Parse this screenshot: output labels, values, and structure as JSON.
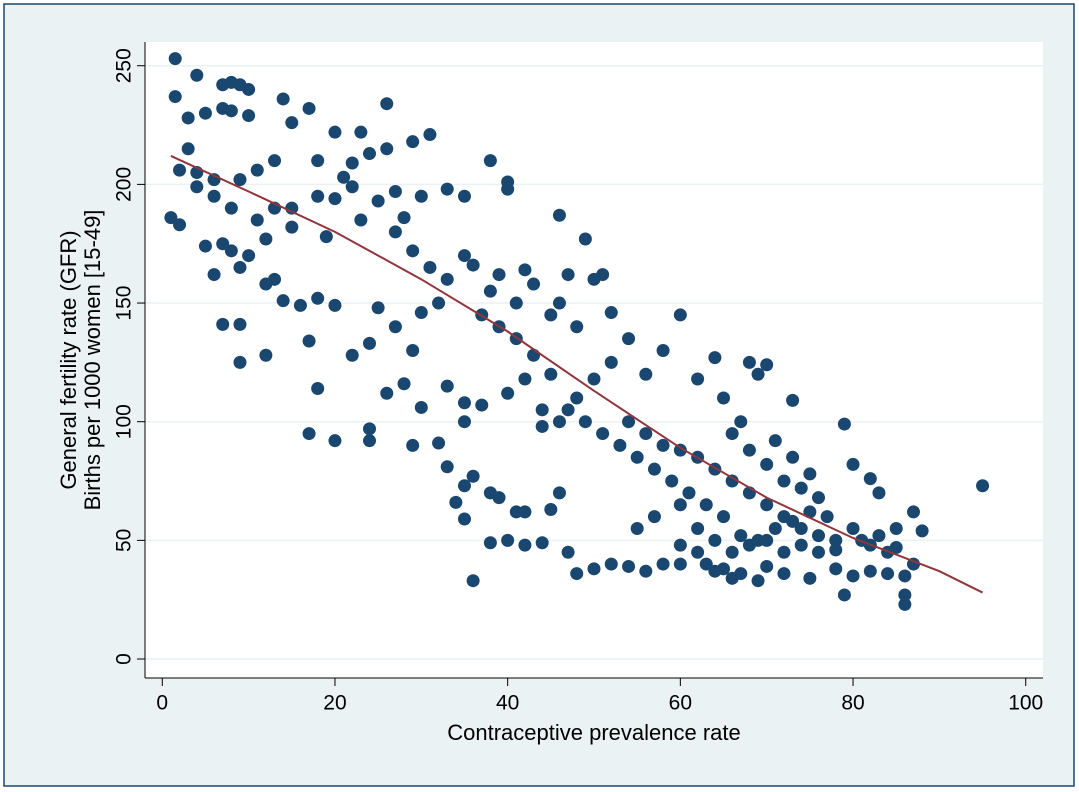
{
  "chart_data": {
    "type": "scatter",
    "x_label": "Contraceptive prevalence rate",
    "y_label": [
      "General fertility rate (GFR)",
      "Births per 1000 women [15-49]"
    ],
    "xlim": [
      -2,
      102
    ],
    "ylim": [
      -8,
      260
    ],
    "xticks": [
      0,
      20,
      40,
      60,
      80,
      100
    ],
    "yticks": [
      0,
      50,
      100,
      150,
      200,
      250
    ],
    "grid": true,
    "series": [
      {
        "type": "scatter",
        "color": "#1a476f",
        "x": [
          1.5,
          1.5,
          4,
          7,
          8,
          9,
          10,
          3,
          5,
          7,
          8,
          10,
          14,
          17,
          26,
          15,
          20,
          23,
          31,
          29,
          26,
          24,
          22,
          18,
          13,
          11,
          2,
          6,
          9,
          4,
          1,
          2,
          5,
          7,
          8,
          9,
          6,
          10,
          12,
          13,
          15,
          18,
          20,
          21,
          22,
          25,
          27,
          28,
          30,
          33,
          35,
          38,
          40,
          40,
          46,
          49,
          12,
          14,
          16,
          18,
          20,
          13,
          7,
          9,
          9,
          12,
          17,
          18,
          22,
          24,
          26,
          28,
          25,
          27,
          29,
          30,
          32,
          33,
          35,
          36,
          38,
          39,
          41,
          42,
          43,
          45,
          46,
          47,
          48,
          50,
          51,
          52,
          17,
          20,
          24,
          24,
          29,
          32,
          35,
          30,
          33,
          35,
          37,
          40,
          42,
          44,
          33,
          35,
          36,
          38,
          39,
          34,
          35,
          41,
          42,
          46,
          45,
          38,
          40,
          42,
          44,
          36,
          47,
          48,
          50,
          52,
          54,
          56,
          58,
          60,
          55,
          57,
          60,
          62,
          63,
          64,
          65,
          66,
          67,
          69,
          70,
          72,
          75,
          78,
          79,
          80,
          82,
          84,
          86,
          86,
          86,
          87,
          88,
          95,
          87,
          85,
          83,
          82,
          80,
          79,
          75,
          73,
          70,
          69,
          68,
          64,
          62,
          60,
          58,
          56,
          54,
          52,
          50,
          48,
          46,
          44,
          54,
          56,
          58,
          60,
          62,
          64,
          66,
          68,
          70,
          72,
          74,
          76,
          78,
          80,
          82,
          84,
          77,
          75,
          73,
          71,
          69,
          67,
          65,
          63,
          61,
          59,
          57,
          55,
          53,
          51,
          49,
          47,
          45,
          43,
          41,
          39,
          37,
          31,
          29,
          27,
          23,
          19,
          15,
          11,
          8,
          6,
          4,
          3,
          60,
          62,
          64,
          66,
          68,
          70,
          72,
          74,
          76,
          78,
          81,
          83,
          85,
          66,
          68,
          70,
          72,
          74,
          76,
          65,
          67,
          71,
          73
        ],
        "values": [
          253,
          237,
          246,
          242,
          243,
          242,
          240,
          228,
          230,
          232,
          231,
          229,
          236,
          232,
          234,
          226,
          222,
          222,
          221,
          218,
          215,
          213,
          209,
          210,
          210,
          206,
          206,
          202,
          202,
          199,
          186,
          183,
          174,
          175,
          172,
          165,
          162,
          170,
          177,
          190,
          190,
          195,
          194,
          203,
          199,
          193,
          197,
          186,
          195,
          198,
          195,
          210,
          201,
          198,
          187,
          177,
          158,
          151,
          149,
          152,
          149,
          160,
          141,
          141,
          125,
          128,
          134,
          114,
          128,
          133,
          112,
          116,
          148,
          140,
          130,
          146,
          150,
          160,
          170,
          166,
          155,
          162,
          150,
          164,
          158,
          145,
          150,
          162,
          140,
          160,
          162,
          146,
          95,
          92,
          97,
          92,
          90,
          91,
          100,
          106,
          115,
          108,
          107,
          112,
          118,
          105,
          81,
          73,
          77,
          70,
          68,
          66,
          59,
          62,
          62,
          70,
          63,
          49,
          50,
          48,
          49,
          33,
          45,
          36,
          38,
          40,
          39,
          37,
          40,
          40,
          55,
          60,
          48,
          45,
          40,
          37,
          38,
          34,
          36,
          33,
          39,
          36,
          34,
          38,
          27,
          35,
          37,
          36,
          35,
          27,
          23,
          40,
          54,
          73,
          62,
          55,
          70,
          76,
          82,
          99,
          78,
          109,
          124,
          120,
          125,
          127,
          118,
          145,
          130,
          120,
          135,
          125,
          118,
          110,
          100,
          98,
          100,
          95,
          90,
          88,
          85,
          80,
          75,
          70,
          65,
          60,
          55,
          52,
          50,
          55,
          48,
          45,
          60,
          62,
          58,
          55,
          50,
          52,
          60,
          65,
          70,
          75,
          80,
          85,
          90,
          95,
          100,
          105,
          120,
          128,
          135,
          140,
          145,
          165,
          172,
          180,
          185,
          178,
          182,
          185,
          190,
          195,
          205,
          215,
          65,
          55,
          50,
          45,
          48,
          50,
          45,
          48,
          45,
          46,
          50,
          52,
          47,
          95,
          88,
          82,
          75,
          72,
          68,
          110,
          100,
          92,
          85
        ]
      },
      {
        "type": "line",
        "color": "#90353b",
        "x": [
          1,
          10,
          20,
          30,
          40,
          50,
          60,
          70,
          80,
          90,
          95
        ],
        "values": [
          212,
          197,
          180,
          160,
          138,
          113,
          89,
          68,
          51,
          37,
          28
        ]
      }
    ]
  }
}
